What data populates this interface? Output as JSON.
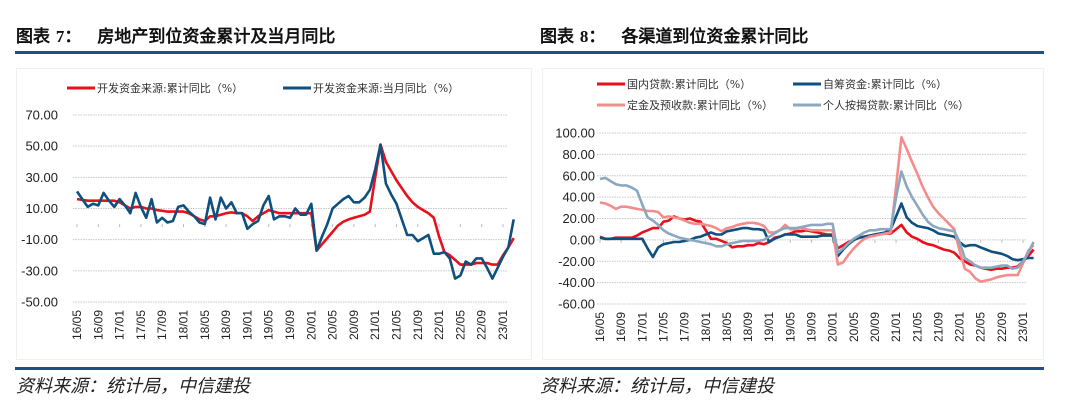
{
  "left": {
    "figure_label": "图表",
    "figure_num": "7",
    "figure_colon": "：",
    "title": "房地产到位资金累计及当月同比",
    "source": "资料来源：统计局，中信建投"
  },
  "right": {
    "figure_label": "图表",
    "figure_num": "8",
    "figure_colon": "：",
    "title": "各渠道到位资金累计同比",
    "source": "资料来源：统计局，中信建投"
  },
  "chart_data": [
    {
      "type": "line",
      "title": "房地产到位资金累计及当月同比",
      "ylim": [
        -50,
        70
      ],
      "yticks": [
        "70.00",
        "50.00",
        "30.00",
        "10.00",
        "-10.00",
        "-30.00",
        "-50.00"
      ],
      "ytick_values": [
        70,
        50,
        30,
        10,
        -10,
        -30,
        -50
      ],
      "xtick_labels": [
        "16/05",
        "16/09",
        "17/01",
        "17/05",
        "17/09",
        "18/01",
        "18/05",
        "18/09",
        "19/01",
        "19/05",
        "19/09",
        "20/01",
        "20/05",
        "20/09",
        "21/01",
        "21/05",
        "21/09",
        "22/01",
        "22/05",
        "22/09",
        "23/01"
      ],
      "x_start": "16/05",
      "x_end": "23/03",
      "grid": true,
      "legend_placement": "top",
      "series": [
        {
          "name": "开发资金来源:累计同比（%）",
          "color": "#e8101a",
          "values": [
            16,
            15.5,
            15,
            15,
            15,
            15,
            15,
            15,
            14,
            12,
            10,
            11,
            11,
            10,
            10,
            9,
            8.5,
            8,
            8,
            8,
            8,
            7,
            5,
            3,
            2,
            5,
            5,
            6,
            7,
            7.5,
            7,
            7,
            5,
            2,
            5,
            7,
            9,
            8,
            7,
            7,
            7,
            7,
            7,
            7,
            7,
            -17,
            -13,
            -9,
            -5,
            -1,
            1.5,
            3,
            4,
            5,
            6,
            8,
            30,
            51,
            40,
            34,
            28,
            23,
            18,
            14,
            11,
            9,
            7,
            4,
            -8,
            -18,
            -20,
            -23,
            -26,
            -26,
            -26,
            -25,
            -25,
            -25,
            -26,
            -26,
            -20,
            -15,
            -9
          ]
        },
        {
          "name": "开发资金来源:当月同比（%）",
          "color": "#10507e",
          "values": [
            21,
            16,
            11,
            13,
            12,
            20,
            15,
            11,
            16,
            12,
            7,
            20,
            11,
            4,
            16,
            1,
            4,
            1,
            2,
            11,
            12,
            8,
            5,
            1,
            0,
            17,
            3,
            17,
            10,
            14,
            7,
            7,
            -3,
            0,
            2,
            12,
            18,
            3,
            5,
            5,
            4,
            10,
            6,
            6,
            13,
            -17,
            -8,
            0,
            10,
            13,
            16,
            18,
            14,
            14,
            17,
            22,
            35,
            51,
            26,
            19,
            13,
            3,
            -7,
            -7,
            -11,
            -9,
            -7,
            -19,
            -19,
            -18,
            -22,
            -35,
            -33,
            -24,
            -26,
            -22,
            -22,
            -28,
            -35,
            -28,
            -21,
            -15,
            3
          ]
        }
      ]
    },
    {
      "type": "line",
      "title": "各渠道到位资金累计同比",
      "ylim": [
        -60,
        100
      ],
      "yticks": [
        "100.00",
        "80.00",
        "60.00",
        "40.00",
        "20.00",
        "0.00",
        "-20.00",
        "-40.00",
        "-60.00"
      ],
      "ytick_values": [
        100,
        80,
        60,
        40,
        20,
        0,
        -20,
        -40,
        -60
      ],
      "xtick_labels": [
        "16/05",
        "16/09",
        "17/01",
        "17/05",
        "17/09",
        "18/01",
        "18/05",
        "18/09",
        "19/01",
        "19/05",
        "19/09",
        "20/01",
        "20/05",
        "20/09",
        "21/01",
        "21/05",
        "21/09",
        "22/01",
        "22/05",
        "22/09",
        "23/01"
      ],
      "x_start": "16/05",
      "x_end": "23/03",
      "grid": true,
      "legend_placement": "top",
      "series": [
        {
          "name": "国内贷款:累计同比（%）",
          "color": "#e8101a",
          "values": [
            3,
            1,
            1,
            2,
            2,
            2,
            2,
            4,
            7,
            9,
            11,
            11,
            17,
            18,
            22,
            20,
            19,
            20,
            18,
            17,
            9,
            1,
            1,
            -1,
            -3,
            -7,
            -6,
            -6,
            -5,
            -5,
            -3,
            -4,
            -2,
            2,
            3,
            5,
            6,
            8,
            8,
            9,
            8,
            7,
            6,
            5,
            5,
            -8,
            -5,
            -2,
            0,
            2,
            3,
            4,
            5,
            6,
            6,
            6,
            10,
            14,
            7,
            3,
            1,
            -2,
            -4,
            -5,
            -7,
            -9,
            -10,
            -12,
            -17,
            -20,
            -23,
            -24,
            -26,
            -27,
            -28,
            -27,
            -27,
            -26,
            -26,
            -25,
            -20,
            -15,
            -9
          ]
        },
        {
          "name": "自筹资金:累计同比（%）",
          "color": "#10507e",
          "values": [
            2,
            1,
            1,
            1,
            1,
            1,
            1,
            1,
            1,
            -8,
            -16,
            -7,
            -4,
            -3,
            -2,
            -2,
            -1,
            0,
            2,
            3,
            5,
            7,
            5,
            5,
            8,
            9,
            10,
            11,
            11,
            10,
            10,
            9,
            -2,
            1,
            3,
            5,
            5,
            5,
            3,
            3,
            3,
            3,
            4,
            4,
            4,
            -15,
            -9,
            -4,
            0,
            2,
            3,
            4,
            5,
            6,
            7,
            10,
            22,
            34,
            21,
            16,
            13,
            12,
            11,
            9,
            6,
            5,
            4,
            3,
            -2,
            -6,
            -5,
            -5,
            -7,
            -9,
            -11,
            -12,
            -13,
            -15,
            -18,
            -19,
            -18,
            -17,
            -17
          ]
        },
        {
          "name": "定金及预收款:累计同比（%）",
          "color": "#f58c8c",
          "values": [
            35,
            34,
            32,
            29,
            31,
            31,
            30,
            29,
            28,
            27,
            27,
            26,
            21,
            22,
            21,
            20,
            18,
            16,
            15,
            15,
            14,
            13,
            11,
            8,
            11,
            12,
            14,
            15,
            16,
            16,
            15,
            13,
            7,
            7,
            9,
            14,
            10,
            10,
            11,
            10,
            9,
            9,
            9,
            9,
            9,
            -23,
            -21,
            -14,
            -8,
            -3,
            1,
            3,
            4,
            5,
            6,
            7,
            50,
            96,
            85,
            73,
            62,
            50,
            40,
            31,
            25,
            20,
            15,
            10,
            -10,
            -27,
            -30,
            -36,
            -39,
            -38,
            -37,
            -35,
            -34,
            -33,
            -33,
            -33,
            -22,
            -10,
            -5
          ]
        },
        {
          "name": "个人按揭贷款:累计同比（%）",
          "color": "#8aa8c0",
          "values": [
            57,
            58,
            55,
            52,
            51,
            51,
            49,
            46,
            33,
            21,
            18,
            14,
            9,
            6,
            4,
            2,
            1,
            0,
            -1,
            -2,
            -3,
            -4,
            -6,
            -6,
            -4,
            -3,
            -2,
            -1,
            -1,
            -1,
            -1,
            0,
            3,
            6,
            9,
            11,
            11,
            11,
            12,
            13,
            14,
            14,
            14,
            15,
            15,
            -12,
            -8,
            -3,
            1,
            4,
            7,
            9,
            9,
            10,
            10,
            10,
            40,
            64,
            50,
            40,
            32,
            24,
            17,
            13,
            11,
            10,
            9,
            8,
            -2,
            -17,
            -20,
            -24,
            -26,
            -26,
            -26,
            -25,
            -24,
            -24,
            -27,
            -26,
            -20,
            -12,
            -2
          ]
        }
      ]
    }
  ]
}
